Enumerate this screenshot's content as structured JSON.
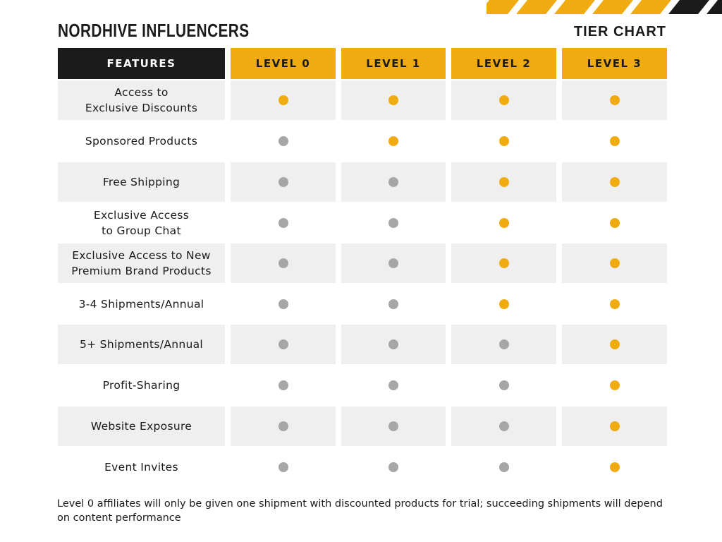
{
  "brand": "NORDHIVE INFLUENCERS",
  "subtitle": "TIER CHART",
  "colors": {
    "accent": "#f0ab11",
    "included": "#f0ab11",
    "not_included": "#a6a6a6",
    "header_dark": "#1b1b1b",
    "row_shade": "#efefef"
  },
  "table": {
    "header": {
      "feature": "FEATURES",
      "levels": [
        "LEVEL 0",
        "LEVEL 1",
        "LEVEL 2",
        "LEVEL 3"
      ]
    },
    "rows": [
      {
        "feature": "Access to\nExclusive Discounts",
        "included": [
          true,
          true,
          true,
          true
        ]
      },
      {
        "feature": "Sponsored Products",
        "included": [
          false,
          true,
          true,
          true
        ]
      },
      {
        "feature": "Free Shipping",
        "included": [
          false,
          false,
          true,
          true
        ]
      },
      {
        "feature": "Exclusive Access\nto Group Chat",
        "included": [
          false,
          false,
          true,
          true
        ]
      },
      {
        "feature": "Exclusive Access to New\nPremium Brand Products",
        "included": [
          false,
          false,
          true,
          true
        ]
      },
      {
        "feature": "3-4 Shipments/Annual",
        "included": [
          false,
          false,
          true,
          true
        ]
      },
      {
        "feature": "5+ Shipments/Annual",
        "included": [
          false,
          false,
          false,
          true
        ]
      },
      {
        "feature": "Profit-Sharing",
        "included": [
          false,
          false,
          false,
          true
        ]
      },
      {
        "feature": "Website Exposure",
        "included": [
          false,
          false,
          false,
          true
        ]
      },
      {
        "feature": "Event Invites",
        "included": [
          false,
          false,
          false,
          true
        ]
      }
    ]
  },
  "footnote": "Level 0 affiliates will only be given one shipment with discounted products for trial; succeeding shipments will depend on content performance"
}
